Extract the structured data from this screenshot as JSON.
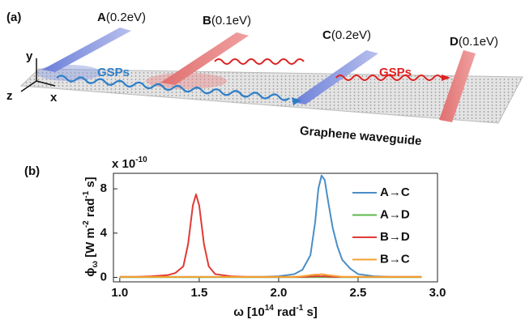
{
  "diagram": {
    "panel_label": "(a)",
    "strips": [
      {
        "letter": "A",
        "energy": "(0.2eV)"
      },
      {
        "letter": "B",
        "energy": "(0.1eV)"
      },
      {
        "letter": "C",
        "energy": "(0.2eV)"
      },
      {
        "letter": "D",
        "energy": "(0.1eV)"
      }
    ],
    "wave_labels": [
      "GSPs",
      "GSPs"
    ],
    "sheet_label": "Graphene waveguide",
    "axes": [
      "y",
      "z",
      "x"
    ]
  },
  "chart_data": {
    "type": "line",
    "panel_label": "(b)",
    "multiplier": [
      "x 10",
      "-10"
    ],
    "xlabel": [
      "ω [10",
      "14",
      " rad",
      "-1",
      " s]"
    ],
    "ylabel": [
      "ϕ",
      "ω",
      " [W m",
      "-2",
      " rad",
      "-1",
      " s]"
    ],
    "x": [
      1.0,
      1.1,
      1.2,
      1.3,
      1.35,
      1.4,
      1.43,
      1.46,
      1.48,
      1.5,
      1.53,
      1.56,
      1.6,
      1.7,
      1.8,
      1.9,
      2.0,
      2.1,
      2.15,
      2.2,
      2.23,
      2.25,
      2.27,
      2.29,
      2.31,
      2.34,
      2.37,
      2.4,
      2.45,
      2.5,
      2.6,
      2.7,
      2.8,
      2.9
    ],
    "series": [
      {
        "name": "A→C",
        "color": "#4a8ec6",
        "values": [
          0.05,
          0.05,
          0.05,
          0.05,
          0.05,
          0.05,
          0.05,
          0.05,
          0.05,
          0.05,
          0.05,
          0.05,
          0.05,
          0.05,
          0.05,
          0.05,
          0.1,
          0.3,
          0.7,
          2.0,
          5.0,
          8.0,
          9.2,
          8.8,
          7.0,
          4.5,
          2.8,
          1.6,
          0.8,
          0.3,
          0.1,
          0.05,
          0.05,
          0.05
        ]
      },
      {
        "name": "A→D",
        "color": "#5cb84a",
        "values": [
          0.02,
          0.02,
          0.02,
          0.02,
          0.02,
          0.02,
          0.02,
          0.02,
          0.02,
          0.02,
          0.02,
          0.02,
          0.02,
          0.02,
          0.02,
          0.02,
          0.02,
          0.02,
          0.02,
          0.02,
          0.02,
          0.02,
          0.02,
          0.02,
          0.02,
          0.02,
          0.02,
          0.02,
          0.02,
          0.02,
          0.02,
          0.02,
          0.02,
          0.02
        ]
      },
      {
        "name": "B→D",
        "color": "#e03a36",
        "values": [
          0.05,
          0.05,
          0.1,
          0.2,
          0.4,
          1.0,
          3.0,
          6.5,
          7.5,
          6.5,
          3.0,
          1.0,
          0.3,
          0.1,
          0.05,
          0.05,
          0.05,
          0.05,
          0.05,
          0.08,
          0.1,
          0.1,
          0.1,
          0.1,
          0.08,
          0.05,
          0.05,
          0.05,
          0.05,
          0.05,
          0.05,
          0.05,
          0.05,
          0.05
        ]
      },
      {
        "name": "B→C",
        "color": "#f5a030",
        "values": [
          0.05,
          0.05,
          0.05,
          0.05,
          0.05,
          0.05,
          0.05,
          0.05,
          0.05,
          0.05,
          0.05,
          0.05,
          0.05,
          0.05,
          0.05,
          0.05,
          0.05,
          0.05,
          0.1,
          0.2,
          0.25,
          0.25,
          0.3,
          0.25,
          0.2,
          0.15,
          0.1,
          0.05,
          0.05,
          0.05,
          0.05,
          0.05,
          0.05,
          0.05
        ]
      }
    ],
    "xlim": [
      0.96,
      3.0
    ],
    "xticks": [
      {
        "value": 1.0,
        "label": "1.0"
      },
      {
        "value": 1.5,
        "label": "1.5"
      },
      {
        "value": 2.0,
        "label": "2.0"
      },
      {
        "value": 2.5,
        "label": "2.5"
      },
      {
        "value": 3.0,
        "label": "3.0"
      }
    ],
    "ylim": [
      -0.4,
      9.4
    ],
    "yticks": [
      0,
      4,
      8
    ],
    "grid": false,
    "legend": "top-right"
  }
}
